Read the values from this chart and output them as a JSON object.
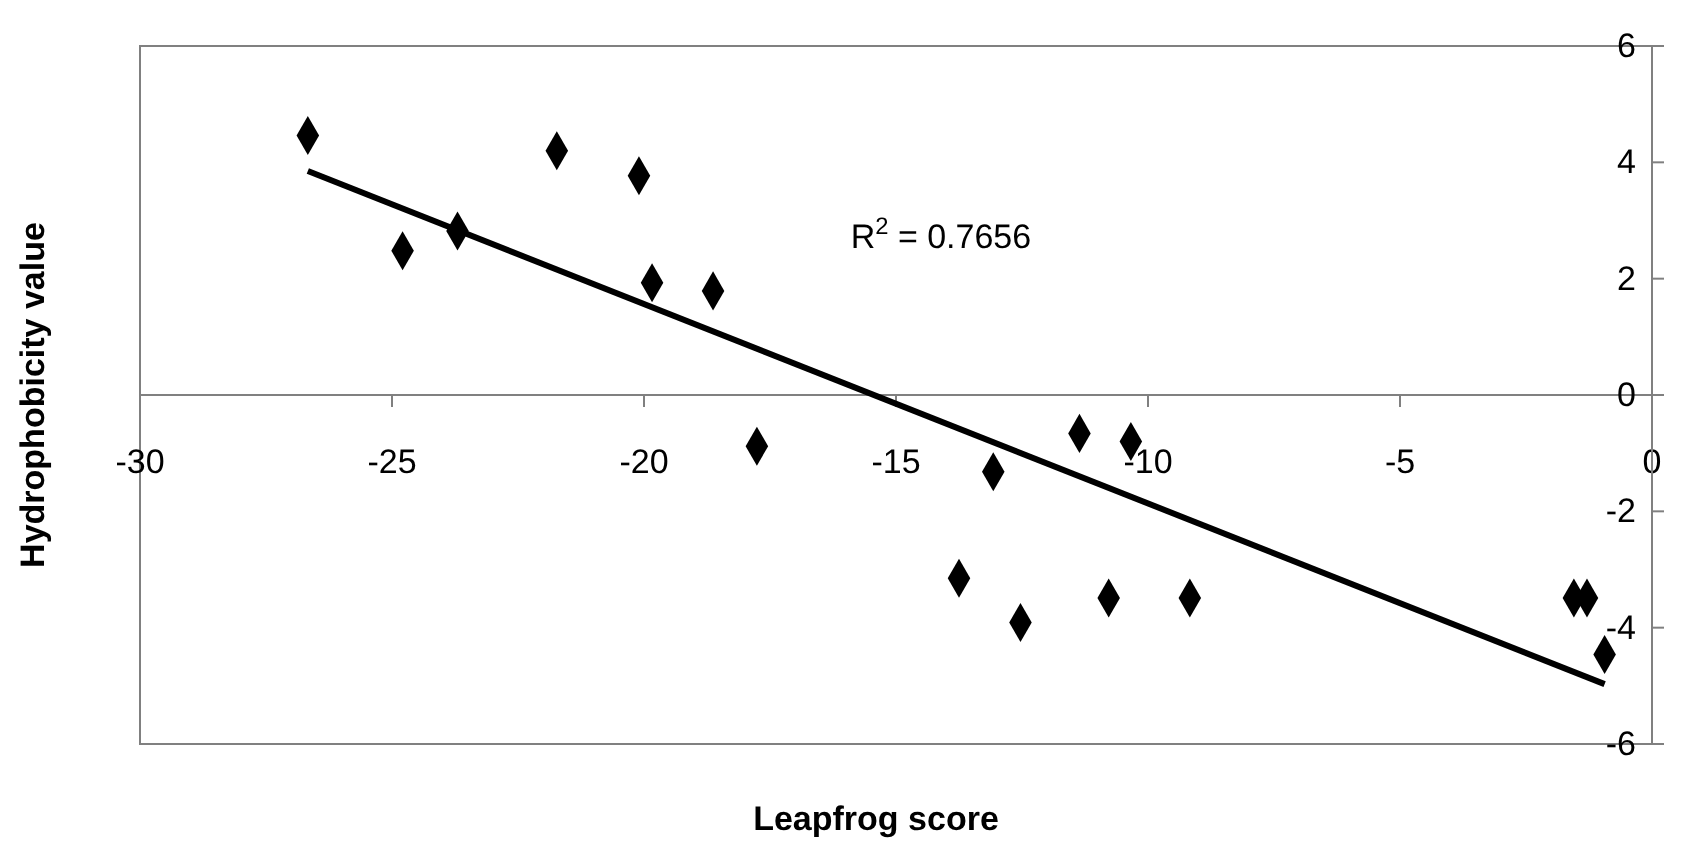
{
  "chart_data": {
    "type": "scatter",
    "xlabel": "Leapfrog score",
    "ylabel": "Hydrophobicity value",
    "marker": "diamond",
    "xlim": [
      -30,
      0
    ],
    "ylim": [
      -6,
      6
    ],
    "xticks": [
      -30,
      -25,
      -20,
      -15,
      -10,
      -5,
      0
    ],
    "yticks": [
      -6,
      -4,
      -2,
      0,
      2,
      4,
      6
    ],
    "grid": false,
    "series": [
      {
        "color": "#000000",
        "x": [
          -26.67,
          -24.79,
          -23.7,
          -21.73,
          -20.1,
          -19.84,
          -18.63,
          -17.76,
          -13.75,
          -13.07,
          -12.53,
          -11.36,
          -10.78,
          -10.34,
          -9.17,
          -1.55,
          -1.29,
          -0.94
        ],
        "values": [
          4.46,
          2.48,
          2.82,
          4.2,
          3.77,
          1.93,
          1.79,
          -0.88,
          -3.15,
          -1.32,
          -3.91,
          -0.66,
          -3.49,
          -0.8,
          -3.49,
          -3.49,
          -3.49,
          -4.46
        ]
      },
      {
        "type": "line",
        "color": "#000000",
        "marker": "none",
        "x": [
          -26.67,
          -0.94
        ],
        "values": [
          3.85,
          -4.97
        ]
      }
    ],
    "annotations": [
      "R$^{2}$ = 0.7656"
    ]
  }
}
